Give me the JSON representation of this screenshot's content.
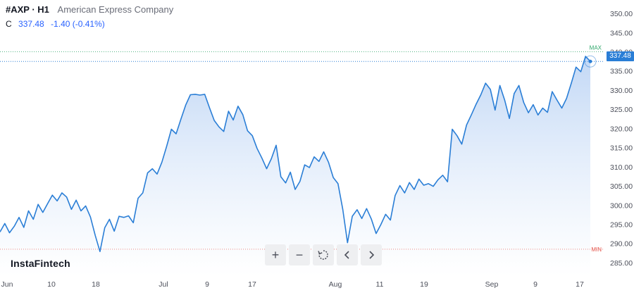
{
  "header": {
    "symbol": "#AXP · H1",
    "company": "American Express Company",
    "close_label": "C",
    "close_value": "337.48",
    "change": "-1.40 (-0.41%)"
  },
  "brand": "InstaFintech",
  "toolbar": {
    "zoom_in": "+",
    "zoom_out": "−",
    "reset_icon": "reset-icon",
    "back_icon": "chevron-left-icon",
    "forward_icon": "chevron-right-icon"
  },
  "markers": {
    "max_label": "MAX",
    "min_label": "MIN",
    "last_price_label": "337.48"
  },
  "colors": {
    "line": "#2a7ed6",
    "fill_top": "#bfd6f5",
    "fill_bottom": "#ffffff",
    "max_line": "#2ea66a",
    "min_line": "#e5584f",
    "accent": "#2962ff"
  },
  "chart_data": {
    "type": "area",
    "ylim": [
      281.5,
      353.5
    ],
    "y_ticks": [
      350,
      345,
      340,
      335,
      330,
      325,
      320,
      315,
      310,
      305,
      300,
      295,
      290,
      285
    ],
    "y_tick_labels": [
      "350.00",
      "345.00",
      "340.00",
      "335.00",
      "330.00",
      "325.00",
      "320.00",
      "315.00",
      "310.00",
      "305.00",
      "300.00",
      "295.00",
      "290.00",
      "285.00"
    ],
    "x_ticks": [
      "Jun",
      "10",
      "18",
      "Jul",
      "9",
      "17",
      "Aug",
      "11",
      "19",
      "Sep",
      "9",
      "17"
    ],
    "max_value": 340.0,
    "min_value": 288.5,
    "last_value": 337.48,
    "grid": false,
    "series": [
      {
        "values": [
          293,
          295.2,
          292.8,
          294.5,
          296.8,
          294.2,
          298.5,
          296.3,
          300.2,
          298.1,
          300.4,
          302.6,
          301.1,
          303.2,
          302.1,
          298.9,
          301.3,
          298.5,
          299.8,
          296.9,
          292.1,
          287.9,
          294.1,
          296.3,
          293.2,
          297.1,
          296.8,
          297.2,
          295.4,
          301.8,
          303.2,
          308.4,
          309.5,
          308.1,
          311.2,
          315.3,
          319.8,
          318.6,
          322.4,
          326.1,
          328.8,
          328.9,
          328.7,
          328.9,
          325.4,
          322.1,
          320.4,
          319.2,
          324.5,
          322.2,
          325.8,
          323.6,
          319.4,
          318.1,
          314.8,
          312.3,
          309.5,
          312.1,
          315.6,
          307.4,
          305.8,
          308.6,
          304.1,
          306.2,
          310.5,
          309.8,
          312.6,
          311.4,
          313.9,
          311.2,
          307.2,
          305.6,
          298.9,
          290.2,
          297.1,
          298.8,
          296.5,
          299.1,
          296.4,
          292.6,
          294.9,
          297.6,
          296.1,
          302.5,
          305.1,
          303.2,
          305.9,
          304.1,
          306.8,
          305.2,
          305.6,
          304.9,
          306.6,
          307.8,
          306.1,
          319.8,
          318.1,
          315.9,
          320.9,
          323.5,
          326.3,
          328.8,
          331.8,
          330.2,
          324.8,
          331.2,
          327.4,
          322.6,
          329.1,
          331.2,
          326.8,
          324.1,
          326.2,
          323.5,
          325.3,
          324.2,
          329.6,
          327.4,
          325.3,
          327.8,
          331.8,
          336.0,
          334.8,
          338.8,
          337.48
        ]
      }
    ]
  }
}
